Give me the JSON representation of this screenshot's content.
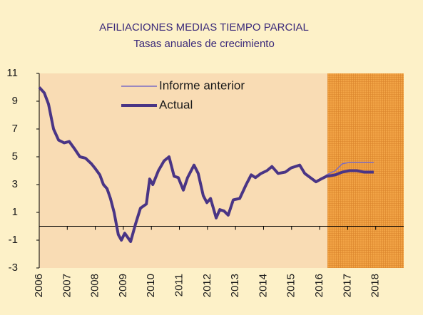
{
  "chart_data": {
    "type": "line",
    "title": "AFILIACIONES MEDIAS  TIEMPO   PARCIAL",
    "subtitle": "Tasas anuales de crecimiento",
    "x": [
      2006.0,
      2006.18,
      2006.33,
      2006.51,
      2006.69,
      2006.89,
      2007.07,
      2007.25,
      2007.45,
      2007.65,
      2007.86,
      2007.98,
      2008.16,
      2008.29,
      2008.42,
      2008.54,
      2008.67,
      2008.82,
      2008.93,
      2009.05,
      2009.26,
      2009.44,
      2009.61,
      2009.82,
      2009.94,
      2010.05,
      2010.25,
      2010.45,
      2010.63,
      2010.81,
      2010.96,
      2011.14,
      2011.29,
      2011.52,
      2011.67,
      2011.85,
      2011.98,
      2012.11,
      2012.31,
      2012.44,
      2012.59,
      2012.74,
      2012.92,
      2013.15,
      2013.38,
      2013.56,
      2013.71,
      2013.91,
      2014.12,
      2014.3,
      2014.52,
      2014.78,
      2014.98,
      2015.29,
      2015.47,
      2015.67,
      2015.87,
      2016.05,
      2016.25,
      2016.56,
      2016.81,
      2017.07,
      2017.32,
      2017.58,
      2017.93
    ],
    "series": [
      {
        "name": "Informe anterior",
        "color": "#7a6cc4",
        "values": [
          null,
          null,
          null,
          null,
          null,
          null,
          null,
          null,
          null,
          null,
          null,
          null,
          null,
          null,
          null,
          null,
          null,
          null,
          null,
          null,
          null,
          null,
          null,
          null,
          null,
          null,
          null,
          null,
          null,
          null,
          null,
          null,
          null,
          null,
          null,
          null,
          null,
          null,
          null,
          null,
          null,
          null,
          null,
          null,
          null,
          null,
          null,
          null,
          null,
          null,
          null,
          null,
          null,
          null,
          null,
          null,
          3.2,
          3.4,
          3.7,
          4.0,
          4.5,
          4.6,
          4.6,
          4.6,
          4.6
        ]
      },
      {
        "name": "Actual",
        "color": "#4a3585",
        "values": [
          10,
          9.6,
          8.8,
          7.0,
          6.2,
          6.0,
          6.1,
          5.6,
          5.0,
          4.9,
          4.5,
          4.2,
          3.7,
          3.0,
          2.7,
          2.0,
          1.0,
          -0.6,
          -1.0,
          -0.5,
          -1.1,
          0.2,
          1.3,
          1.6,
          3.4,
          3.0,
          4.0,
          4.7,
          5.0,
          3.6,
          3.5,
          2.6,
          3.5,
          4.4,
          3.8,
          2.2,
          1.7,
          2.0,
          0.6,
          1.2,
          1.1,
          0.8,
          1.9,
          2.0,
          3.0,
          3.7,
          3.5,
          3.8,
          4.0,
          4.3,
          3.8,
          3.9,
          4.2,
          4.4,
          3.8,
          3.5,
          3.2,
          3.4,
          3.6,
          3.7,
          3.9,
          4.0,
          4.0,
          3.9,
          3.9
        ]
      }
    ],
    "forecast_span": [
      2016.28,
      2019
    ],
    "xlim": [
      2006,
      2019
    ],
    "xticks": [
      2006,
      2007,
      2008,
      2009,
      2010,
      2011,
      2012,
      2013,
      2014,
      2015,
      2016,
      2017,
      2018
    ],
    "ylim": [
      -3,
      11
    ],
    "yticks": [
      -3,
      -1,
      1,
      3,
      5,
      7,
      9,
      11
    ],
    "legend": "upper center"
  }
}
